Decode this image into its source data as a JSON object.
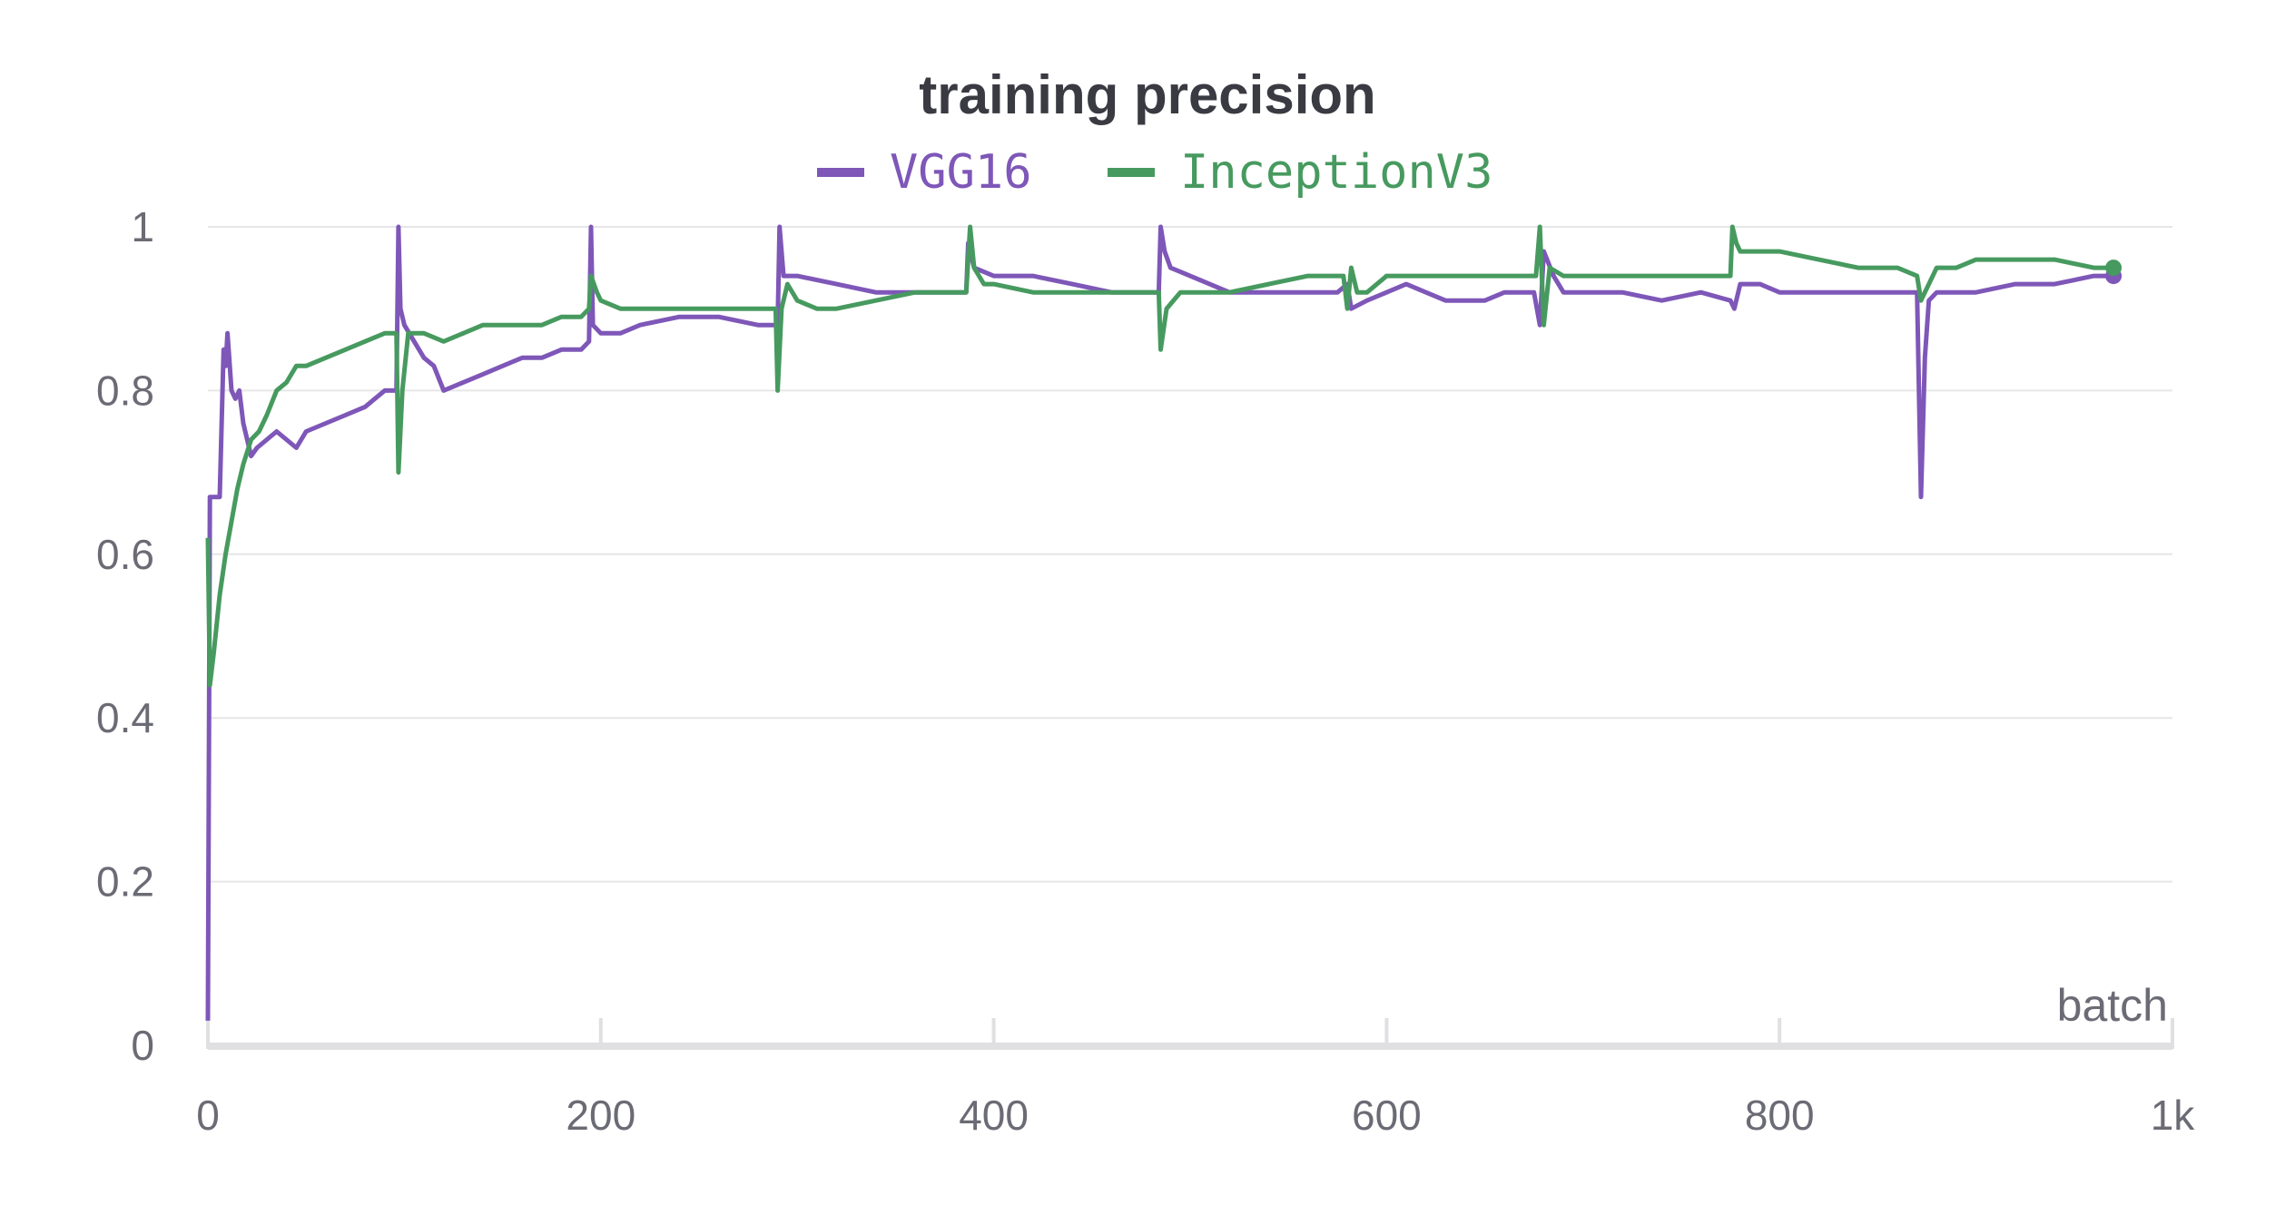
{
  "chart_data": {
    "type": "line",
    "title": "training precision",
    "xlabel": "batch",
    "ylabel": "",
    "xlim": [
      0,
      1000
    ],
    "ylim": [
      0,
      1
    ],
    "xticks": [
      0,
      200,
      400,
      600,
      800,
      1000
    ],
    "xtick_labels": [
      "0",
      "200",
      "400",
      "600",
      "800",
      "1k"
    ],
    "yticks": [
      0,
      0.2,
      0.4,
      0.6,
      0.8,
      1
    ],
    "ytick_labels": [
      "0",
      "0.2",
      "0.4",
      "0.6",
      "0.8",
      "1"
    ],
    "grid": true,
    "legend_position": "top-center",
    "series": [
      {
        "name": "VGG16",
        "color": "#7e57b8",
        "points": [
          [
            0,
            0.03
          ],
          [
            1,
            0.67
          ],
          [
            4,
            0.67
          ],
          [
            6,
            0.67
          ],
          [
            8,
            0.85
          ],
          [
            9,
            0.83
          ],
          [
            10,
            0.87
          ],
          [
            12,
            0.8
          ],
          [
            14,
            0.79
          ],
          [
            16,
            0.8
          ],
          [
            18,
            0.76
          ],
          [
            20,
            0.74
          ],
          [
            22,
            0.72
          ],
          [
            25,
            0.73
          ],
          [
            30,
            0.74
          ],
          [
            35,
            0.75
          ],
          [
            40,
            0.74
          ],
          [
            45,
            0.73
          ],
          [
            50,
            0.75
          ],
          [
            60,
            0.76
          ],
          [
            70,
            0.77
          ],
          [
            80,
            0.78
          ],
          [
            90,
            0.8
          ],
          [
            96,
            0.8
          ],
          [
            97,
            1.0
          ],
          [
            98,
            0.9
          ],
          [
            100,
            0.88
          ],
          [
            105,
            0.86
          ],
          [
            110,
            0.84
          ],
          [
            115,
            0.83
          ],
          [
            120,
            0.8
          ],
          [
            130,
            0.81
          ],
          [
            140,
            0.82
          ],
          [
            150,
            0.83
          ],
          [
            160,
            0.84
          ],
          [
            170,
            0.84
          ],
          [
            180,
            0.85
          ],
          [
            190,
            0.85
          ],
          [
            194,
            0.86
          ],
          [
            195,
            1.0
          ],
          [
            196,
            0.88
          ],
          [
            200,
            0.87
          ],
          [
            210,
            0.87
          ],
          [
            220,
            0.88
          ],
          [
            240,
            0.89
          ],
          [
            260,
            0.89
          ],
          [
            280,
            0.88
          ],
          [
            290,
            0.88
          ],
          [
            291,
            1.0
          ],
          [
            293,
            0.94
          ],
          [
            300,
            0.94
          ],
          [
            320,
            0.93
          ],
          [
            340,
            0.92
          ],
          [
            360,
            0.92
          ],
          [
            380,
            0.92
          ],
          [
            386,
            0.92
          ],
          [
            387,
            0.98
          ],
          [
            390,
            0.95
          ],
          [
            400,
            0.94
          ],
          [
            420,
            0.94
          ],
          [
            440,
            0.93
          ],
          [
            460,
            0.92
          ],
          [
            480,
            0.92
          ],
          [
            484,
            0.92
          ],
          [
            485,
            1.0
          ],
          [
            487,
            0.97
          ],
          [
            490,
            0.95
          ],
          [
            500,
            0.94
          ],
          [
            520,
            0.92
          ],
          [
            540,
            0.92
          ],
          [
            560,
            0.92
          ],
          [
            575,
            0.92
          ],
          [
            580,
            0.93
          ],
          [
            582,
            0.9
          ],
          [
            590,
            0.91
          ],
          [
            600,
            0.92
          ],
          [
            610,
            0.93
          ],
          [
            620,
            0.92
          ],
          [
            630,
            0.91
          ],
          [
            640,
            0.91
          ],
          [
            650,
            0.91
          ],
          [
            660,
            0.92
          ],
          [
            675,
            0.92
          ],
          [
            678,
            0.88
          ],
          [
            680,
            0.97
          ],
          [
            685,
            0.94
          ],
          [
            690,
            0.92
          ],
          [
            700,
            0.92
          ],
          [
            720,
            0.92
          ],
          [
            740,
            0.91
          ],
          [
            760,
            0.92
          ],
          [
            775,
            0.91
          ],
          [
            777,
            0.9
          ],
          [
            780,
            0.93
          ],
          [
            790,
            0.93
          ],
          [
            800,
            0.92
          ],
          [
            820,
            0.92
          ],
          [
            840,
            0.92
          ],
          [
            860,
            0.92
          ],
          [
            870,
            0.92
          ],
          [
            872,
            0.67
          ],
          [
            874,
            0.84
          ],
          [
            876,
            0.91
          ],
          [
            880,
            0.92
          ],
          [
            890,
            0.92
          ],
          [
            900,
            0.92
          ],
          [
            920,
            0.93
          ],
          [
            940,
            0.93
          ],
          [
            960,
            0.94
          ],
          [
            970,
            0.94
          ]
        ]
      },
      {
        "name": "InceptionV3",
        "color": "#479a5f",
        "points": [
          [
            0,
            0.62
          ],
          [
            1,
            0.44
          ],
          [
            3,
            0.48
          ],
          [
            6,
            0.55
          ],
          [
            9,
            0.6
          ],
          [
            12,
            0.64
          ],
          [
            15,
            0.68
          ],
          [
            18,
            0.71
          ],
          [
            22,
            0.74
          ],
          [
            26,
            0.75
          ],
          [
            30,
            0.77
          ],
          [
            35,
            0.8
          ],
          [
            40,
            0.81
          ],
          [
            45,
            0.83
          ],
          [
            50,
            0.83
          ],
          [
            60,
            0.84
          ],
          [
            70,
            0.85
          ],
          [
            80,
            0.86
          ],
          [
            90,
            0.87
          ],
          [
            96,
            0.87
          ],
          [
            97,
            0.7
          ],
          [
            99,
            0.8
          ],
          [
            102,
            0.87
          ],
          [
            110,
            0.87
          ],
          [
            120,
            0.86
          ],
          [
            130,
            0.87
          ],
          [
            140,
            0.88
          ],
          [
            150,
            0.88
          ],
          [
            160,
            0.88
          ],
          [
            170,
            0.88
          ],
          [
            180,
            0.89
          ],
          [
            190,
            0.89
          ],
          [
            194,
            0.9
          ],
          [
            195,
            0.94
          ],
          [
            198,
            0.92
          ],
          [
            200,
            0.91
          ],
          [
            210,
            0.9
          ],
          [
            220,
            0.9
          ],
          [
            240,
            0.9
          ],
          [
            260,
            0.9
          ],
          [
            280,
            0.9
          ],
          [
            289,
            0.9
          ],
          [
            290,
            0.8
          ],
          [
            292,
            0.9
          ],
          [
            295,
            0.93
          ],
          [
            300,
            0.91
          ],
          [
            310,
            0.9
          ],
          [
            320,
            0.9
          ],
          [
            340,
            0.91
          ],
          [
            360,
            0.92
          ],
          [
            380,
            0.92
          ],
          [
            386,
            0.92
          ],
          [
            388,
            1.0
          ],
          [
            390,
            0.95
          ],
          [
            395,
            0.93
          ],
          [
            400,
            0.93
          ],
          [
            420,
            0.92
          ],
          [
            440,
            0.92
          ],
          [
            460,
            0.92
          ],
          [
            480,
            0.92
          ],
          [
            484,
            0.92
          ],
          [
            485,
            0.85
          ],
          [
            488,
            0.9
          ],
          [
            495,
            0.92
          ],
          [
            500,
            0.92
          ],
          [
            520,
            0.92
          ],
          [
            540,
            0.93
          ],
          [
            560,
            0.94
          ],
          [
            578,
            0.94
          ],
          [
            580,
            0.9
          ],
          [
            582,
            0.95
          ],
          [
            585,
            0.92
          ],
          [
            590,
            0.92
          ],
          [
            600,
            0.94
          ],
          [
            620,
            0.94
          ],
          [
            640,
            0.94
          ],
          [
            660,
            0.94
          ],
          [
            676,
            0.94
          ],
          [
            678,
            1.0
          ],
          [
            680,
            0.88
          ],
          [
            683,
            0.95
          ],
          [
            690,
            0.94
          ],
          [
            700,
            0.94
          ],
          [
            720,
            0.94
          ],
          [
            740,
            0.94
          ],
          [
            760,
            0.94
          ],
          [
            775,
            0.94
          ],
          [
            776,
            1.0
          ],
          [
            778,
            0.98
          ],
          [
            780,
            0.97
          ],
          [
            800,
            0.97
          ],
          [
            820,
            0.96
          ],
          [
            840,
            0.95
          ],
          [
            860,
            0.95
          ],
          [
            870,
            0.94
          ],
          [
            872,
            0.91
          ],
          [
            876,
            0.93
          ],
          [
            880,
            0.95
          ],
          [
            890,
            0.95
          ],
          [
            900,
            0.96
          ],
          [
            920,
            0.96
          ],
          [
            940,
            0.96
          ],
          [
            960,
            0.95
          ],
          [
            970,
            0.95
          ]
        ]
      }
    ]
  }
}
